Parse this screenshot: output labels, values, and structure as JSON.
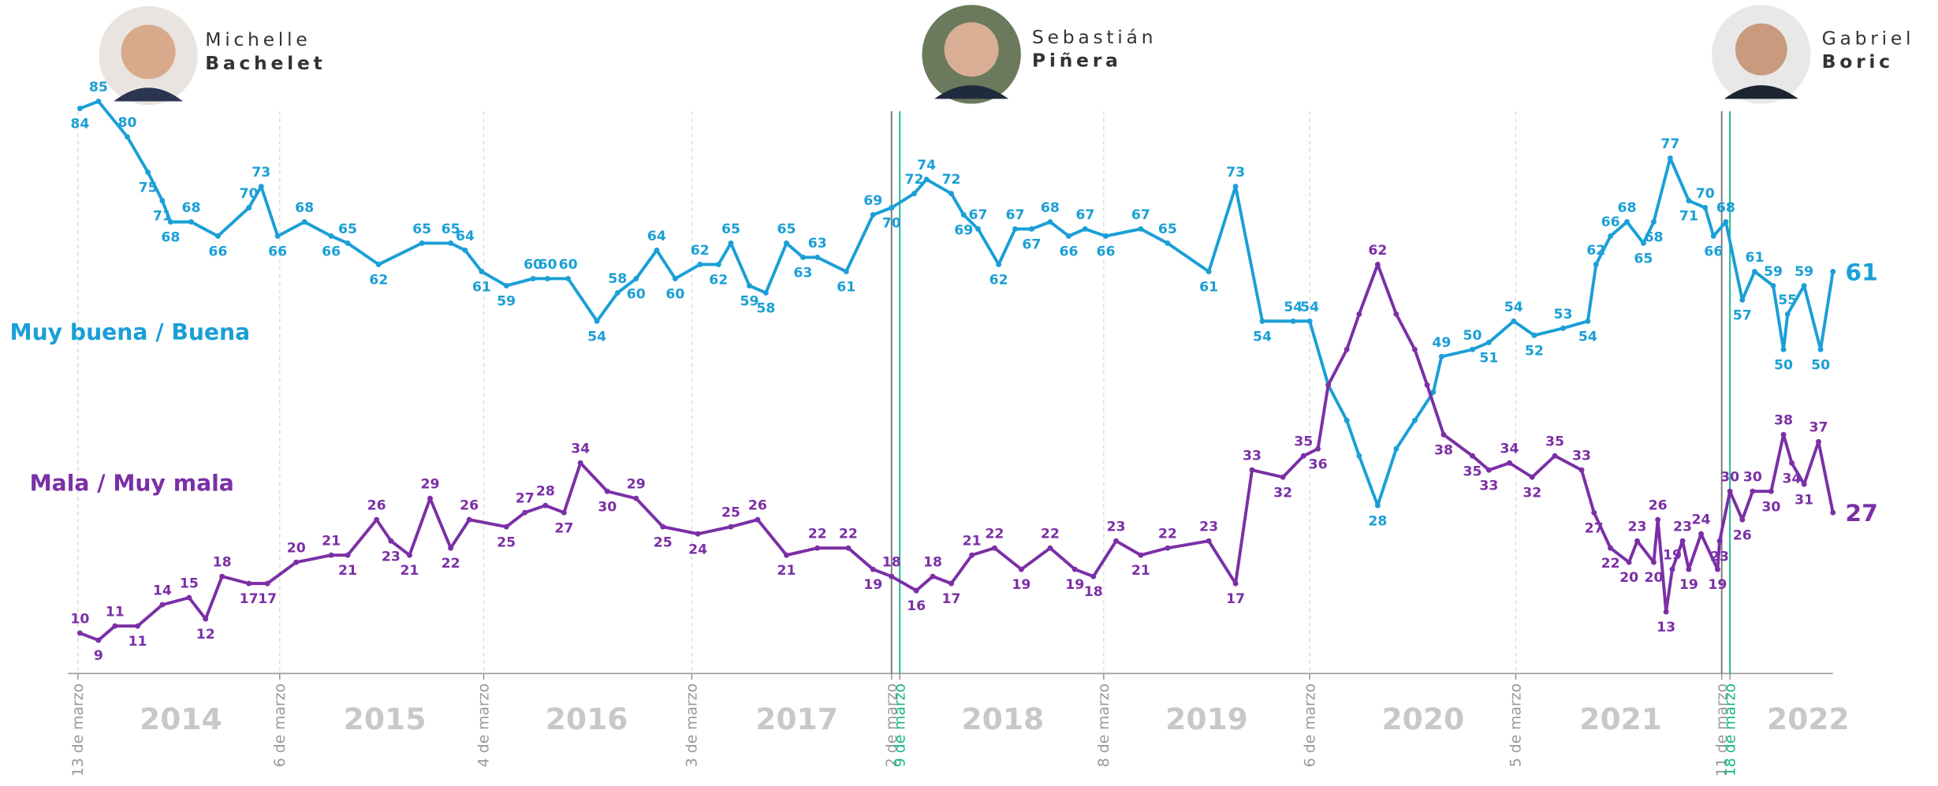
{
  "chart_data": {
    "type": "line",
    "presidents": [
      {
        "first": "Michelle",
        "last": "Bachelet"
      },
      {
        "first": "Sebastián",
        "last": "Piñera"
      },
      {
        "first": "Gabriel",
        "last": "Boric"
      }
    ],
    "xlim": [
      2014.2,
      2022.72
    ],
    "ylim": [
      4.3,
      99.3
    ],
    "xticks": [
      {
        "value": 2014.2,
        "label": "13 de marzo"
      },
      {
        "value": 2015.18,
        "label": "6 de marzo"
      },
      {
        "value": 2016.17,
        "label": "4 de marzo"
      },
      {
        "value": 2017.18,
        "label": "3 de marzo"
      },
      {
        "value": 2018.15,
        "label": "2 de marzo",
        "line": "solid"
      },
      {
        "value": 2018.19,
        "label": "9 de marzo",
        "line": "solid",
        "color": "#1bb58c"
      },
      {
        "value": 2019.18,
        "label": "8 de marzo"
      },
      {
        "value": 2020.18,
        "label": "6 de marzo"
      },
      {
        "value": 2021.18,
        "label": "5 de marzo"
      },
      {
        "value": 2022.18,
        "label": "11 de marzo",
        "line": "solid"
      },
      {
        "value": 2022.22,
        "label": "18 de marzo",
        "line": "solid",
        "color": "#1bb58c"
      }
    ],
    "years": [
      {
        "value": 2014.7,
        "label": "2014"
      },
      {
        "value": 2015.69,
        "label": "2015"
      },
      {
        "value": 2016.67,
        "label": "2016"
      },
      {
        "value": 2017.69,
        "label": "2017"
      },
      {
        "value": 2018.69,
        "label": "2018"
      },
      {
        "value": 2019.68,
        "label": "2019"
      },
      {
        "value": 2020.73,
        "label": "2020"
      },
      {
        "value": 2021.69,
        "label": "2021"
      },
      {
        "value": 2022.6,
        "label": "2022"
      }
    ],
    "series": [
      {
        "name": "Muy buena / Buena",
        "color": "#1a9fd6",
        "x": [
          2014.21,
          2014.3,
          2014.44,
          2014.54,
          2014.61,
          2014.65,
          2014.75,
          2014.88,
          2015.03,
          2015.09,
          2015.17,
          2015.3,
          2015.43,
          2015.51,
          2015.66,
          2015.87,
          2016.01,
          2016.08,
          2016.16,
          2016.28,
          2016.41,
          2016.48,
          2016.58,
          2016.72,
          2016.82,
          2016.91,
          2017.01,
          2017.1,
          2017.22,
          2017.31,
          2017.37,
          2017.46,
          2017.54,
          2017.64,
          2017.72,
          2017.79,
          2017.93,
          2018.06,
          2018.15,
          2018.26,
          2018.32,
          2018.44,
          2018.5,
          2018.57,
          2018.67,
          2018.75,
          2018.83,
          2018.92,
          2019.01,
          2019.09,
          2019.19,
          2019.36,
          2019.49,
          2019.69,
          2019.82,
          2019.95,
          2020.1,
          2020.18,
          2020.27,
          2020.36,
          2020.42,
          2020.51,
          2020.6,
          2020.69,
          2020.78,
          2020.82,
          2020.97,
          2021.05,
          2021.17,
          2021.27,
          2021.41,
          2021.53,
          2021.57,
          2021.64,
          2021.72,
          2021.8,
          2021.85,
          2021.93,
          2022.02,
          2022.1,
          2022.14,
          2022.2,
          2022.28,
          2022.34,
          2022.43,
          2022.48,
          2022.5,
          2022.58,
          2022.66,
          2022.72
        ],
        "values": [
          84,
          85,
          80,
          75,
          71,
          68,
          68,
          66,
          70,
          73,
          66,
          68,
          66,
          65,
          62,
          65,
          65,
          64,
          61,
          59,
          60,
          60,
          60,
          54,
          58,
          60,
          64,
          60,
          62,
          62,
          65,
          59,
          58,
          65,
          63,
          63,
          61,
          69,
          70,
          72,
          74,
          72,
          69,
          67,
          62,
          67,
          67,
          68,
          66,
          67,
          66,
          67,
          65,
          61,
          73,
          54,
          54,
          54,
          45,
          40,
          35,
          28,
          36,
          40,
          44,
          49,
          50,
          51,
          54,
          52,
          53,
          54,
          62,
          66,
          68,
          65,
          68,
          77,
          71,
          70,
          66,
          68,
          57,
          61,
          59,
          50,
          55,
          59,
          50,
          61
        ],
        "value_labels": [
          "84",
          "85",
          "80",
          "75",
          "71",
          "68",
          "68",
          "66",
          "70",
          "73",
          "66",
          "68",
          "66",
          "65",
          "62",
          "65",
          "65",
          "64",
          "61",
          "59",
          "60",
          "60",
          "60",
          "54",
          "58",
          "60",
          "64",
          "60",
          "62",
          "62",
          "65",
          "59",
          "58",
          "65",
          "63",
          "63",
          "61",
          "69",
          "70",
          "72",
          "74",
          "72",
          "69",
          "67",
          "62",
          "67",
          "67",
          "68",
          "66",
          "67",
          "66",
          "67",
          "65",
          "61",
          "73",
          "54",
          "54",
          "54",
          null,
          null,
          null,
          "28",
          null,
          null,
          null,
          "49",
          "50",
          "51",
          "54",
          "52",
          "53",
          "54",
          "62",
          "66",
          "68",
          "65",
          "68",
          "77",
          "71",
          "70",
          "66",
          "68",
          "57",
          "61",
          "59",
          "50",
          "55",
          "59",
          "50",
          "61"
        ]
      },
      {
        "name": "Mala / Muy mala",
        "color": "#7b2fa6",
        "x": [
          2014.21,
          2014.3,
          2014.38,
          2014.49,
          2014.61,
          2014.74,
          2014.82,
          2014.9,
          2015.03,
          2015.12,
          2015.26,
          2015.43,
          2015.51,
          2015.65,
          2015.72,
          2015.81,
          2015.91,
          2016.01,
          2016.1,
          2016.28,
          2016.37,
          2016.47,
          2016.56,
          2016.64,
          2016.77,
          2016.91,
          2017.04,
          2017.21,
          2017.37,
          2017.5,
          2017.64,
          2017.79,
          2017.94,
          2018.06,
          2018.15,
          2018.27,
          2018.35,
          2018.44,
          2018.54,
          2018.65,
          2018.78,
          2018.92,
          2019.04,
          2019.13,
          2019.24,
          2019.36,
          2019.49,
          2019.69,
          2019.82,
          2019.9,
          2020.05,
          2020.15,
          2020.22,
          2020.27,
          2020.36,
          2020.42,
          2020.51,
          2020.6,
          2020.69,
          2020.75,
          2020.83,
          2020.97,
          2021.05,
          2021.15,
          2021.26,
          2021.37,
          2021.5,
          2021.56,
          2021.64,
          2021.73,
          2021.77,
          2021.85,
          2021.87,
          2021.91,
          2021.94,
          2021.99,
          2022.02,
          2022.08,
          2022.16,
          2022.17,
          2022.22,
          2022.28,
          2022.33,
          2022.42,
          2022.48,
          2022.52,
          2022.58,
          2022.65,
          2022.72
        ],
        "values": [
          10,
          9,
          11,
          11,
          14,
          15,
          12,
          18,
          17,
          17,
          20,
          21,
          21,
          26,
          23,
          21,
          29,
          22,
          26,
          25,
          27,
          28,
          27,
          34,
          30,
          29,
          25,
          24,
          25,
          26,
          21,
          22,
          22,
          19,
          18,
          16,
          18,
          17,
          21,
          22,
          19,
          22,
          19,
          18,
          23,
          21,
          22,
          23,
          17,
          33,
          32,
          35,
          36,
          45,
          50,
          55,
          62,
          55,
          50,
          45,
          38,
          35,
          33,
          34,
          32,
          35,
          33,
          27,
          22,
          20,
          23,
          20,
          26,
          13,
          19,
          23,
          19,
          24,
          19,
          23,
          30,
          26,
          30,
          30,
          38,
          34,
          31,
          37,
          27
        ],
        "value_labels": [
          "10",
          "9",
          "11",
          "11",
          "14",
          "15",
          "12",
          "18",
          "17",
          "17",
          "20",
          "21",
          "21",
          "26",
          "23",
          "21",
          "29",
          "22",
          "26",
          "25",
          "27",
          "28",
          "27",
          "34",
          "30",
          "29",
          "25",
          "24",
          "25",
          "26",
          "21",
          "22",
          "22",
          "19",
          "18",
          "16",
          "18",
          "17",
          "21",
          "22",
          "19",
          "22",
          "19",
          "18",
          "23",
          "21",
          "22",
          "23",
          "17",
          "33",
          "32",
          "35",
          "36",
          null,
          null,
          null,
          "62",
          null,
          null,
          null,
          "38",
          "35",
          "33",
          "34",
          "32",
          "35",
          "33",
          "27",
          "22",
          "20",
          "23",
          "20",
          "26",
          "13",
          "19",
          "23",
          "19",
          "24",
          "19",
          "23",
          "30",
          "26",
          "30",
          "30",
          "38",
          "34",
          "31",
          "37",
          "27"
        ]
      }
    ]
  }
}
